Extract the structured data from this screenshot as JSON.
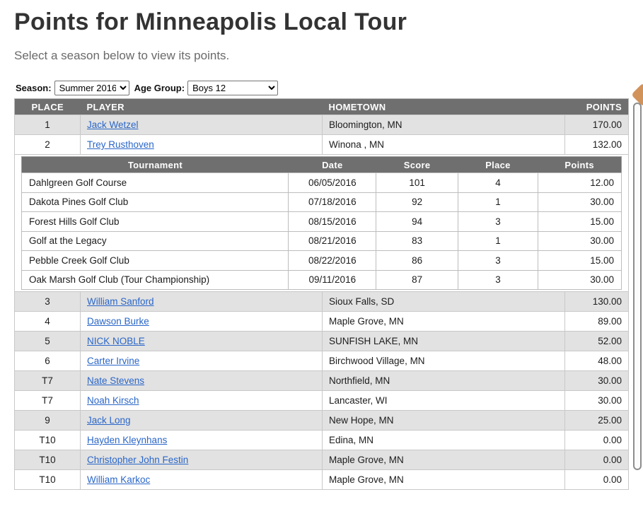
{
  "page": {
    "title": "Points for Minneapolis Local Tour",
    "subtitle": "Select a season below to view its points."
  },
  "filters": {
    "season_label": "Season:",
    "season_value": "Summer 2016",
    "age_group_label": "Age Group:",
    "age_group_value": "Boys 12"
  },
  "points_table": {
    "headers": [
      "PLACE",
      "PLAYER",
      "HOMETOWN",
      "POINTS"
    ],
    "expanded_player": "Trey Rusthoven",
    "rows": [
      {
        "place": "1",
        "player": "Jack Wetzel",
        "hometown": "Bloomington, MN",
        "points": "170.00"
      },
      {
        "place": "2",
        "player": "Trey Rusthoven",
        "hometown": "Winona , MN",
        "points": "132.00"
      },
      {
        "place": "3",
        "player": "William Sanford",
        "hometown": "Sioux Falls, SD",
        "points": "130.00"
      },
      {
        "place": "4",
        "player": "Dawson Burke",
        "hometown": "Maple Grove, MN",
        "points": "89.00"
      },
      {
        "place": "5",
        "player": "NICK NOBLE",
        "hometown": "SUNFISH LAKE, MN",
        "points": "52.00"
      },
      {
        "place": "6",
        "player": "Carter Irvine",
        "hometown": "Birchwood Village, MN",
        "points": "48.00"
      },
      {
        "place": "T7",
        "player": "Nate Stevens",
        "hometown": "Northfield, MN",
        "points": "30.00"
      },
      {
        "place": "T7",
        "player": "Noah Kirsch",
        "hometown": "Lancaster, WI",
        "points": "30.00"
      },
      {
        "place": "9",
        "player": "Jack Long",
        "hometown": "New Hope, MN",
        "points": "25.00"
      },
      {
        "place": "T10",
        "player": "Hayden Kleynhans",
        "hometown": "Edina, MN",
        "points": "0.00"
      },
      {
        "place": "T10",
        "player": "Christopher John Festin",
        "hometown": "Maple Grove, MN",
        "points": "0.00"
      },
      {
        "place": "T10",
        "player": "William Karkoc",
        "hometown": "Maple Grove, MN",
        "points": "0.00"
      }
    ]
  },
  "tournament_table": {
    "headers": [
      "Tournament",
      "Date",
      "Score",
      "Place",
      "Points"
    ],
    "rows": [
      {
        "tournament": "Dahlgreen Golf Course",
        "date": "06/05/2016",
        "score": "101",
        "place": "4",
        "points": "12.00"
      },
      {
        "tournament": "Dakota Pines Golf Club",
        "date": "07/18/2016",
        "score": "92",
        "place": "1",
        "points": "30.00"
      },
      {
        "tournament": "Forest Hills Golf Club",
        "date": "08/15/2016",
        "score": "94",
        "place": "3",
        "points": "15.00"
      },
      {
        "tournament": "Golf at the Legacy",
        "date": "08/21/2016",
        "score": "83",
        "place": "1",
        "points": "30.00"
      },
      {
        "tournament": "Pebble Creek Golf Club",
        "date": "08/22/2016",
        "score": "86",
        "place": "3",
        "points": "15.00"
      },
      {
        "tournament": "Oak Marsh Golf Club (Tour Championship)",
        "date": "09/11/2016",
        "score": "87",
        "place": "3",
        "points": "30.00"
      }
    ]
  },
  "colors": {
    "table_header_bg": "#6f6f6f",
    "row_alt_bg": "#e2e2e2",
    "link_blue": "#2a66c8",
    "scroll_accent_orange": "#d2935b",
    "title_text": "#333333"
  }
}
